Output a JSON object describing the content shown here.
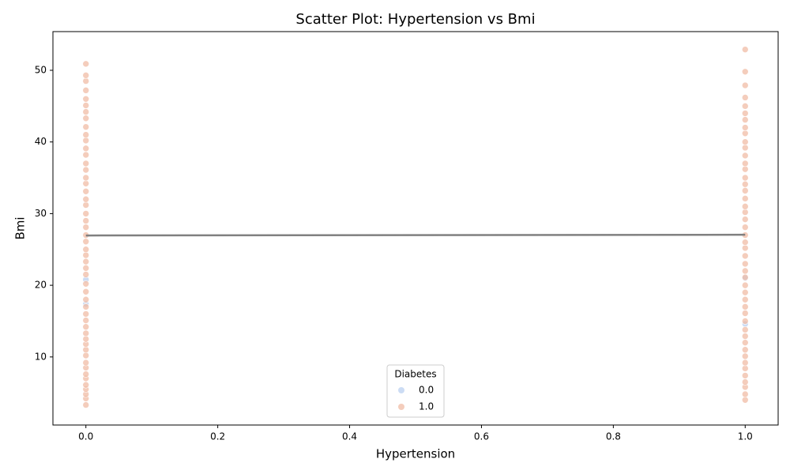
{
  "chart_data": {
    "type": "scatter",
    "title": "Scatter Plot: Hypertension vs Bmi",
    "x_label": "Hypertension",
    "y_label": "Bmi",
    "xlim": [
      -0.05,
      1.05
    ],
    "ylim": [
      0.5,
      55.4
    ],
    "xticks": [
      {
        "value": 0,
        "label": "0.0"
      },
      {
        "value": 0.2,
        "label": "0.2"
      },
      {
        "value": 0.4,
        "label": "0.4"
      },
      {
        "value": 0.6,
        "label": "0.6"
      },
      {
        "value": 0.8,
        "label": "0.8"
      },
      {
        "value": 1,
        "label": "1.0"
      }
    ],
    "yticks": [
      10,
      20,
      30,
      40,
      50
    ],
    "legend_title": "Diabetes",
    "legend_position": "lower center",
    "series": [
      {
        "name": "0.0",
        "color": "#b7cdef",
        "x": [
          0,
          0,
          1,
          1
        ],
        "values": [
          20.8,
          17.4,
          14.6,
          21.0
        ]
      },
      {
        "name": "1.0",
        "color": "#f0b8a0",
        "x": [
          0,
          0,
          0,
          0,
          0,
          0,
          0,
          0,
          0,
          0,
          0,
          0,
          0,
          0,
          0,
          0,
          0,
          0,
          0,
          0,
          0,
          0,
          0,
          0,
          0,
          0,
          0,
          0,
          0,
          0,
          0,
          0,
          0,
          0,
          0,
          0,
          0,
          0,
          0,
          0,
          0,
          0,
          0,
          0,
          0,
          0,
          0,
          0,
          0,
          0,
          0,
          1,
          1,
          1,
          1,
          1,
          1,
          1,
          1,
          1,
          1,
          1,
          1,
          1,
          1,
          1,
          1,
          1,
          1,
          1,
          1,
          1,
          1,
          1,
          1,
          1,
          1,
          1,
          1,
          1,
          1,
          1,
          1,
          1,
          1,
          1,
          1,
          1,
          1,
          1,
          1,
          1,
          1,
          1,
          1,
          1,
          1,
          1
        ],
        "values": [
          3.3,
          4.2,
          4.8,
          5.5,
          6.1,
          7.0,
          7.6,
          8.5,
          9.2,
          10.2,
          11.0,
          11.8,
          12.5,
          13.3,
          14.2,
          15.1,
          16.0,
          17.0,
          18.0,
          19.1,
          20.2,
          21.5,
          22.4,
          23.3,
          24.2,
          25.0,
          26.1,
          27.0,
          28.1,
          29.0,
          30.0,
          31.2,
          32.0,
          33.1,
          34.2,
          35.0,
          36.1,
          37.0,
          38.2,
          39.1,
          40.2,
          41.0,
          42.1,
          43.3,
          44.2,
          45.1,
          46.0,
          47.2,
          48.5,
          49.3,
          50.9,
          4.0,
          4.8,
          5.8,
          6.5,
          7.4,
          8.4,
          9.2,
          10.1,
          11.0,
          12.0,
          12.9,
          13.8,
          15.0,
          16.1,
          17.0,
          18.0,
          19.0,
          20.0,
          21.1,
          22.0,
          23.0,
          24.1,
          25.2,
          26.0,
          27.0,
          28.1,
          29.2,
          30.2,
          31.0,
          32.1,
          33.2,
          34.1,
          35.0,
          36.2,
          37.0,
          38.1,
          39.2,
          40.0,
          41.2,
          42.0,
          43.1,
          44.0,
          45.0,
          46.2,
          47.9,
          49.8,
          52.9
        ]
      }
    ],
    "trend_line": {
      "color": "#808080",
      "x": [
        0,
        1
      ],
      "values": [
        26.95,
        27.05
      ]
    }
  }
}
